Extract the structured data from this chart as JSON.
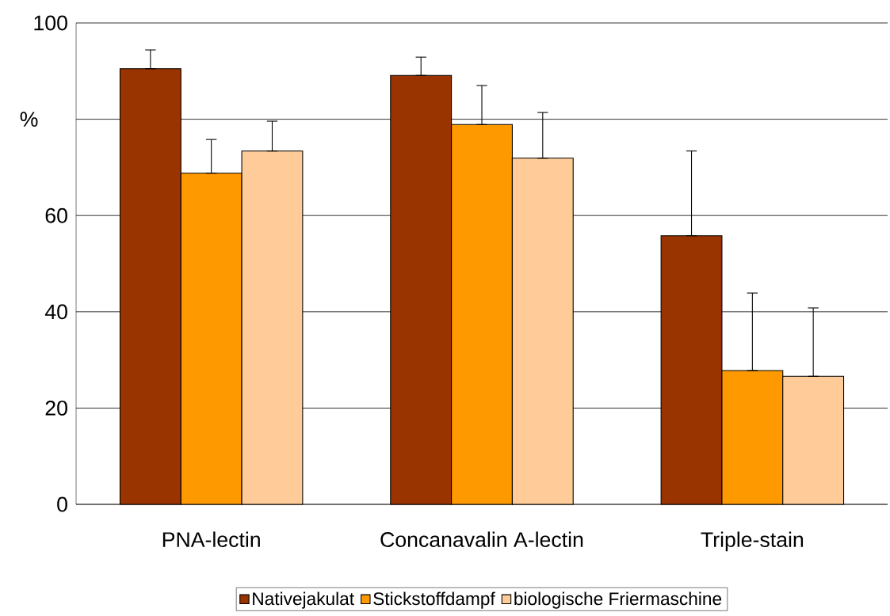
{
  "chart_data": {
    "type": "bar",
    "ylabel": "%",
    "categories": [
      "PNA-lectin",
      "Concanavalin A-lectin",
      "Triple-stain"
    ],
    "series": [
      {
        "name": "Nativejakulat",
        "color": "#993300",
        "values": [
          90.5,
          89.1,
          55.8
        ],
        "errors": [
          [
            90.5,
            94.4
          ],
          [
            89.1,
            92.9
          ],
          [
            55.8,
            73.4
          ]
        ]
      },
      {
        "name": "Stickstoffdampf",
        "color": "#ff9900",
        "values": [
          68.8,
          78.9,
          27.8
        ],
        "errors": [
          [
            68.8,
            75.8
          ],
          [
            78.9,
            87.0
          ],
          [
            27.8,
            43.9
          ]
        ]
      },
      {
        "name": "biologische Friermaschine",
        "color": "#ffcc99",
        "values": [
          73.4,
          71.9,
          26.6
        ],
        "errors": [
          [
            73.4,
            79.6
          ],
          [
            71.9,
            81.4
          ],
          [
            26.6,
            40.8
          ]
        ]
      }
    ],
    "ylim": [
      0,
      100
    ],
    "yticks": [
      0,
      20,
      40,
      60,
      {
        "value": 80,
        "label": null
      },
      100
    ],
    "grid": "y",
    "legend": "bottom"
  }
}
